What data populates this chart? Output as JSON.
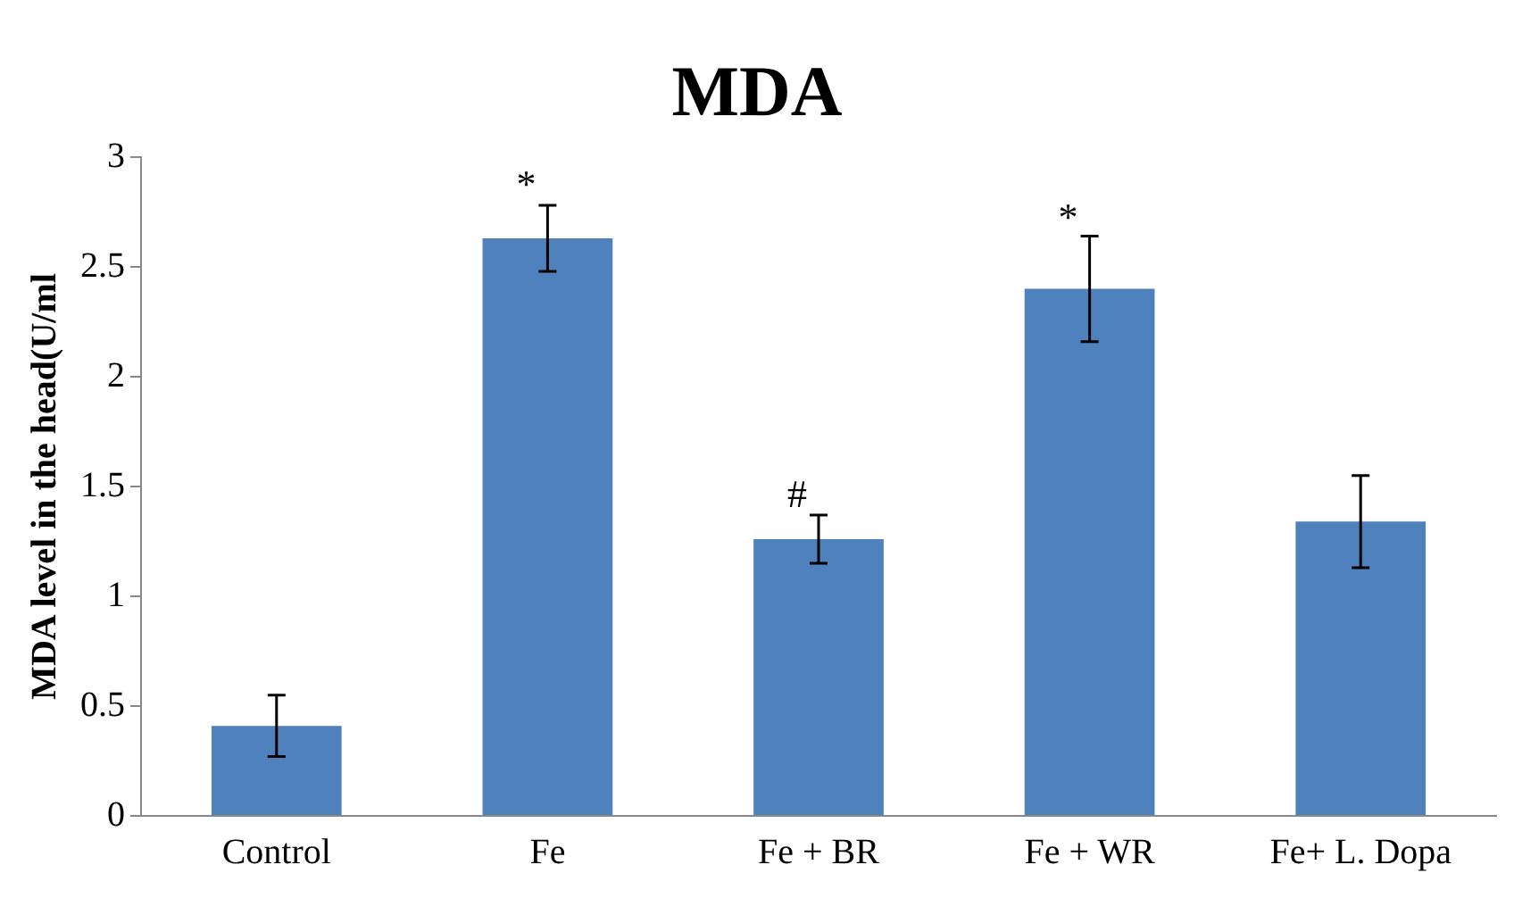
{
  "chart_data": {
    "type": "bar",
    "title": "MDA",
    "ylabel": "MDA level in the head(U/ml",
    "categories": [
      "Control",
      "Fe",
      "Fe + BR",
      "Fe + WR",
      "Fe+ L. Dopa"
    ],
    "values": [
      0.41,
      2.63,
      1.26,
      2.4,
      1.34
    ],
    "errors": [
      0.14,
      0.15,
      0.11,
      0.24,
      0.21
    ],
    "color": "#4f81bd",
    "ylim": [
      0,
      3
    ],
    "yticks": [
      0,
      0.5,
      1,
      1.5,
      2,
      2.5,
      3
    ],
    "grid": false,
    "legend": false,
    "annotations": [
      {
        "text": "*",
        "x": "Fe",
        "y": 2.79
      },
      {
        "text": "#",
        "x": "Fe + BR",
        "y": 1.38
      },
      {
        "text": "*",
        "x": "Fe + WR",
        "y": 2.64
      }
    ]
  }
}
